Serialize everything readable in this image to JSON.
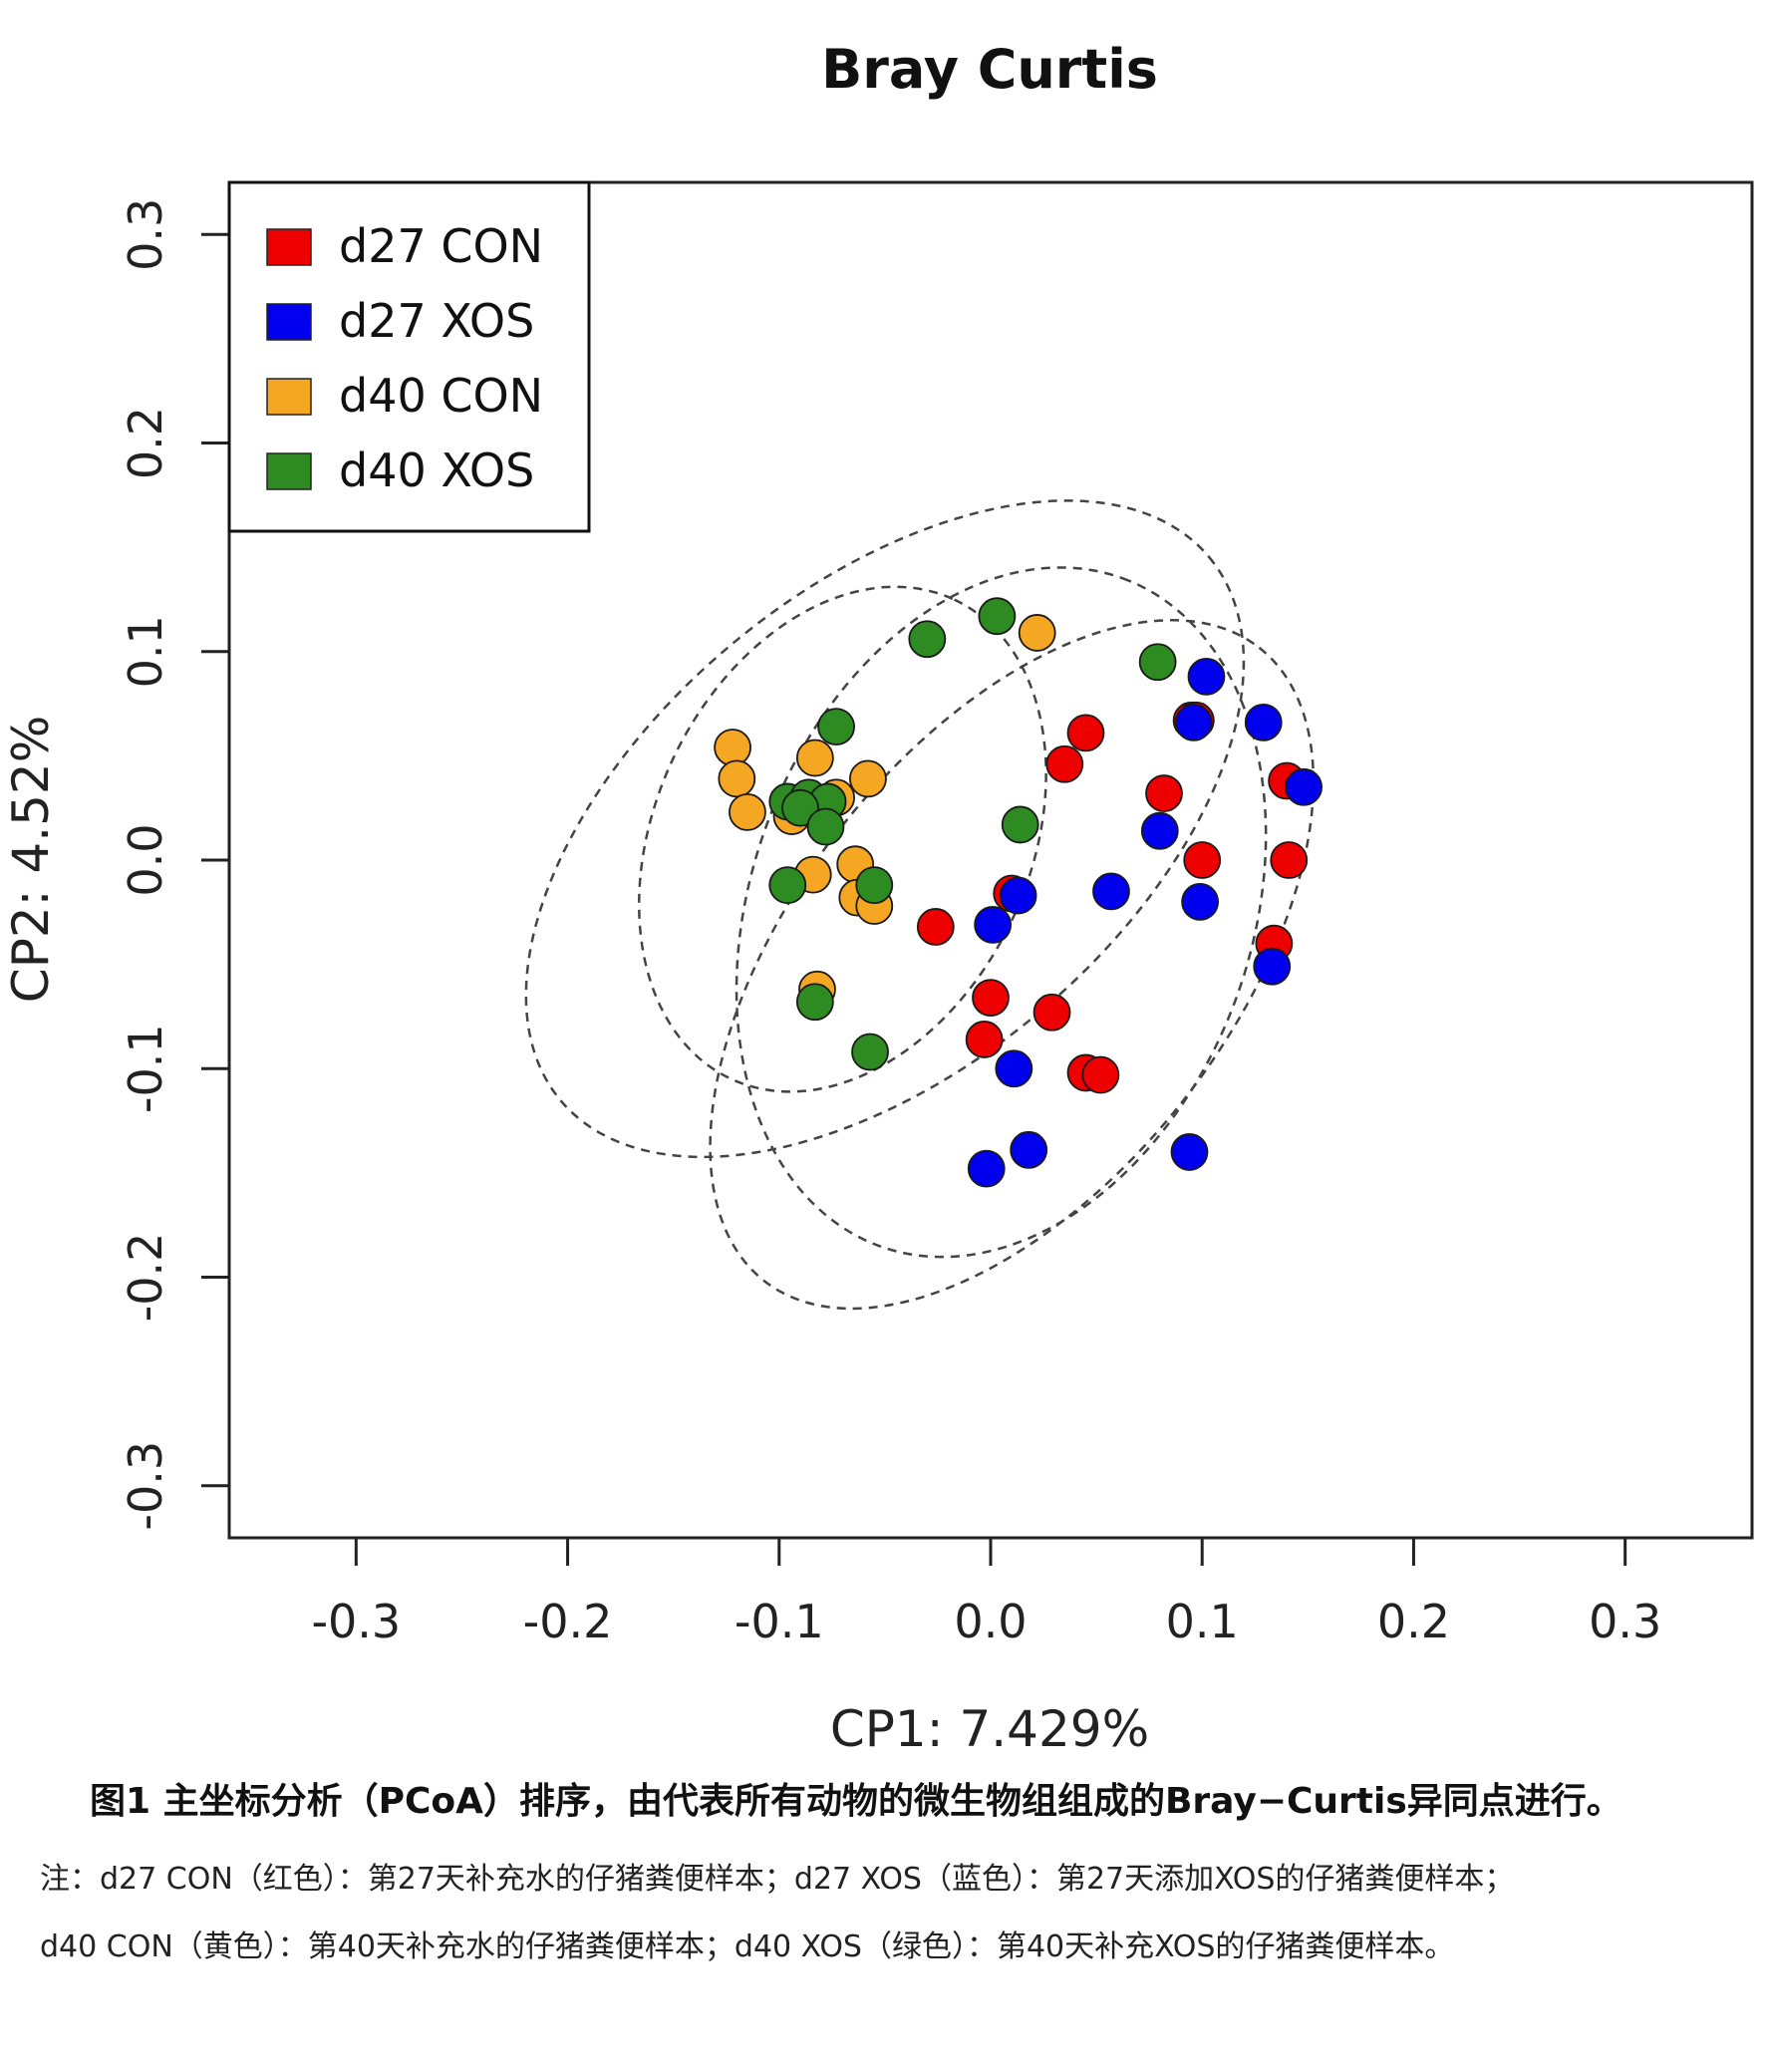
{
  "chart_data": {
    "type": "scatter",
    "title": "Bray Curtis",
    "xlabel": "CP1: 7.429%",
    "ylabel": "CP2: 4.52%",
    "xlim": [
      -0.36,
      0.36
    ],
    "ylim": [
      -0.325,
      0.325
    ],
    "x_ticks": [
      "-0.3",
      "-0.2",
      "-0.1",
      "0.0",
      "0.1",
      "0.2",
      "0.3"
    ],
    "y_ticks": [
      "-0.3",
      "-0.2",
      "-0.1",
      "0.0",
      "0.1",
      "0.2",
      "0.3"
    ],
    "grid": false,
    "legend_position": "top-left",
    "series": [
      {
        "name": "d27 CON",
        "color": "#ee0000",
        "points": [
          [
            0.095,
            0.067
          ],
          [
            0.097,
            0.067
          ],
          [
            0.045,
            0.061
          ],
          [
            0.035,
            0.046
          ],
          [
            0.082,
            0.032
          ],
          [
            0.14,
            0.038
          ],
          [
            0.1,
            0.0
          ],
          [
            0.141,
            0.0
          ],
          [
            0.01,
            -0.016
          ],
          [
            -0.026,
            -0.032
          ],
          [
            0.134,
            -0.04
          ],
          [
            0.0,
            -0.066
          ],
          [
            0.029,
            -0.073
          ],
          [
            -0.003,
            -0.086
          ],
          [
            0.045,
            -0.102
          ],
          [
            0.052,
            -0.103
          ]
        ]
      },
      {
        "name": "d27 XOS",
        "color": "#0000ee",
        "points": [
          [
            0.102,
            0.088
          ],
          [
            0.096,
            0.066
          ],
          [
            0.129,
            0.066
          ],
          [
            0.148,
            0.035
          ],
          [
            0.08,
            0.014
          ],
          [
            0.057,
            -0.015
          ],
          [
            0.099,
            -0.02
          ],
          [
            0.013,
            -0.017
          ],
          [
            0.001,
            -0.031
          ],
          [
            0.133,
            -0.051
          ],
          [
            0.011,
            -0.1
          ],
          [
            0.018,
            -0.139
          ],
          [
            0.094,
            -0.14
          ],
          [
            -0.002,
            -0.148
          ]
        ]
      },
      {
        "name": "d40 CON",
        "color": "#f5a623",
        "points": [
          [
            0.022,
            0.109
          ],
          [
            -0.122,
            0.054
          ],
          [
            -0.12,
            0.039
          ],
          [
            -0.083,
            0.049
          ],
          [
            -0.058,
            0.039
          ],
          [
            -0.115,
            0.023
          ],
          [
            -0.094,
            0.021
          ],
          [
            -0.073,
            0.03
          ],
          [
            -0.084,
            -0.007
          ],
          [
            -0.064,
            -0.002
          ],
          [
            -0.063,
            -0.018
          ],
          [
            -0.055,
            -0.022
          ],
          [
            -0.082,
            -0.062
          ]
        ]
      },
      {
        "name": "d40 XOS",
        "color": "#2e8b22",
        "points": [
          [
            0.003,
            0.117
          ],
          [
            -0.03,
            0.106
          ],
          [
            0.079,
            0.095
          ],
          [
            -0.073,
            0.064
          ],
          [
            -0.096,
            0.028
          ],
          [
            -0.086,
            0.03
          ],
          [
            -0.077,
            0.028
          ],
          [
            -0.09,
            0.025
          ],
          [
            -0.078,
            0.016
          ],
          [
            0.014,
            0.017
          ],
          [
            -0.096,
            -0.012
          ],
          [
            -0.055,
            -0.012
          ],
          [
            -0.083,
            -0.068
          ],
          [
            -0.057,
            -0.092
          ]
        ]
      }
    ],
    "ellipses": [
      {
        "cx": 0.01,
        "cy": -0.05,
        "rx": 0.19,
        "ry": 0.105,
        "angle_deg": 52
      },
      {
        "cx": 0.005,
        "cy": -0.025,
        "rx": 0.168,
        "ry": 0.12,
        "angle_deg": 70
      },
      {
        "cx": -0.05,
        "cy": 0.015,
        "rx": 0.2,
        "ry": 0.115,
        "angle_deg": 40
      },
      {
        "cx": -0.07,
        "cy": 0.01,
        "rx": 0.125,
        "ry": 0.09,
        "angle_deg": 65
      }
    ]
  },
  "caption": {
    "title": "图1 主坐标分析（PCoA）排序，由代表所有动物的微生物组组成的Bray−Curtis异同点进行。",
    "note_line_1": "注：d27 CON（红色）：第27天补充水的仔猪粪便样本；d27 XOS（蓝色）：第27天添加XOS的仔猪粪便样本；",
    "note_line_2": "d40 CON（黄色）：第40天补充水的仔猪粪便样本；d40 XOS（绿色）：第40天补充XOS的仔猪粪便样本。"
  }
}
